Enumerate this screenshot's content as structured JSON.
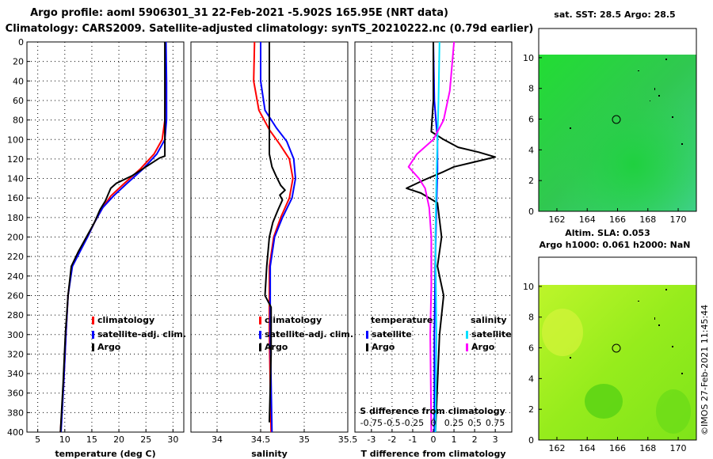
{
  "title_line1": "Argo profile: aoml 5906301_31 22-Feb-2021 -5.902S 165.95E (NRT data)",
  "title_line2": "Climatology: CARS2009. Satellite-adjusted climatology: synTS_20210222.nc (0.79d earlier)",
  "colors": {
    "climatology": "#ff0000",
    "satellite": "#0000ff",
    "argo": "#000000",
    "sat_salinity": "#00e0ff",
    "argo_salinity": "#ff00ff"
  },
  "chart_data": [
    {
      "type": "line",
      "name": "temperature",
      "xlabel": "temperature (deg C)",
      "xlim": [
        3,
        32
      ],
      "ylim": [
        0,
        400
      ],
      "xticks": [
        5,
        10,
        15,
        20,
        25,
        30
      ],
      "yticks": [
        0,
        20,
        40,
        60,
        80,
        100,
        120,
        140,
        160,
        180,
        200,
        220,
        240,
        260,
        280,
        300,
        320,
        340,
        360,
        380,
        400
      ],
      "legend": [
        "climatology",
        "satellite-adj. clim.",
        "Argo"
      ],
      "series": [
        {
          "name": "climatology",
          "color": "#ff0000",
          "points": [
            [
              28.6,
              0
            ],
            [
              28.6,
              40
            ],
            [
              28.5,
              80
            ],
            [
              28.0,
              100
            ],
            [
              26.5,
              115
            ],
            [
              24,
              130
            ],
            [
              21,
              145
            ],
            [
              18.5,
              158
            ],
            [
              17,
              170
            ],
            [
              15.5,
              185
            ],
            [
              14.2,
              200
            ],
            [
              12.5,
              215
            ],
            [
              11.3,
              230
            ],
            [
              10.6,
              260
            ],
            [
              10.2,
              300
            ],
            [
              9.8,
              350
            ],
            [
              9.2,
              400
            ]
          ]
        },
        {
          "name": "satellite-adj. clim.",
          "color": "#0000ff",
          "points": [
            [
              28.7,
              0
            ],
            [
              28.8,
              40
            ],
            [
              28.8,
              80
            ],
            [
              28.5,
              100
            ],
            [
              27,
              115
            ],
            [
              24.5,
              130
            ],
            [
              21.5,
              145
            ],
            [
              19,
              158
            ],
            [
              17,
              170
            ],
            [
              15.5,
              185
            ],
            [
              14.2,
              200
            ],
            [
              12.8,
              215
            ],
            [
              11.4,
              230
            ],
            [
              10.6,
              260
            ],
            [
              10.2,
              300
            ],
            [
              9.8,
              350
            ],
            [
              9.3,
              400
            ]
          ]
        },
        {
          "name": "Argo",
          "color": "#000000",
          "points": [
            [
              28.5,
              0
            ],
            [
              28.5,
              60
            ],
            [
              28.5,
              100
            ],
            [
              28.5,
              117
            ],
            [
              27.5,
              119
            ],
            [
              25,
              128
            ],
            [
              22.5,
              137
            ],
            [
              19.5,
              145
            ],
            [
              18.5,
              150
            ],
            [
              17.5,
              163
            ],
            [
              16.5,
              172
            ],
            [
              15.5,
              185
            ],
            [
              14.0,
              200
            ],
            [
              12.5,
              215
            ],
            [
              11.2,
              230
            ],
            [
              10.6,
              260
            ],
            [
              10.1,
              300
            ],
            [
              9.7,
              350
            ],
            [
              9.2,
              400
            ]
          ]
        }
      ]
    },
    {
      "type": "line",
      "name": "salinity",
      "xlabel": "salinity",
      "xlim": [
        33.7,
        35.5
      ],
      "ylim": [
        0,
        400
      ],
      "xticks": [
        34,
        34.5,
        35,
        35.5
      ],
      "legend": [
        "climatology",
        "satellite-adj. clim.",
        "Argo"
      ],
      "series": [
        {
          "name": "climatology",
          "color": "#ff0000",
          "points": [
            [
              34.43,
              0
            ],
            [
              34.42,
              40
            ],
            [
              34.48,
              70
            ],
            [
              34.6,
              90
            ],
            [
              34.72,
              105
            ],
            [
              34.83,
              120
            ],
            [
              34.87,
              140
            ],
            [
              34.83,
              160
            ],
            [
              34.73,
              180
            ],
            [
              34.65,
              200
            ],
            [
              34.6,
              230
            ],
            [
              34.6,
              300
            ],
            [
              34.62,
              400
            ]
          ]
        },
        {
          "name": "satellite-adj. clim.",
          "color": "#0000ff",
          "points": [
            [
              34.5,
              0
            ],
            [
              34.5,
              40
            ],
            [
              34.55,
              70
            ],
            [
              34.68,
              88
            ],
            [
              34.8,
              102
            ],
            [
              34.88,
              120
            ],
            [
              34.9,
              140
            ],
            [
              34.86,
              160
            ],
            [
              34.75,
              180
            ],
            [
              34.66,
              200
            ],
            [
              34.61,
              230
            ],
            [
              34.61,
              300
            ],
            [
              34.63,
              400
            ]
          ]
        },
        {
          "name": "Argo",
          "color": "#000000",
          "points": [
            [
              34.6,
              0
            ],
            [
              34.6,
              95
            ],
            [
              34.6,
              115
            ],
            [
              34.63,
              128
            ],
            [
              34.68,
              138
            ],
            [
              34.73,
              147
            ],
            [
              34.78,
              152
            ],
            [
              34.72,
              157
            ],
            [
              34.75,
              162
            ],
            [
              34.7,
              172
            ],
            [
              34.64,
              185
            ],
            [
              34.6,
              200
            ],
            [
              34.57,
              230
            ],
            [
              34.55,
              260
            ],
            [
              34.62,
              272
            ],
            [
              34.62,
              320
            ],
            [
              34.6,
              390
            ]
          ]
        }
      ]
    },
    {
      "type": "line",
      "name": "T difference from climatology",
      "xlabel": "T difference from climatology",
      "xlim": [
        -3.8,
        3.8
      ],
      "ylim": [
        0,
        400
      ],
      "xticks": [
        -3,
        -2,
        -1,
        0,
        1,
        2,
        3
      ],
      "top_xlabel": "S difference from climatology",
      "top_xtick_labels": [
        "-0.75",
        "-0.5",
        "-0.25",
        "0",
        "0.25",
        "0.5",
        "0.75"
      ],
      "legend_temperature": [
        "temperature",
        "satellite",
        "Argo"
      ],
      "legend_salinity": [
        "salinity",
        "satellite",
        "Argo"
      ],
      "series": [
        {
          "name": "temperature satellite",
          "color": "#0000ff",
          "points": [
            [
              0,
              0
            ],
            [
              0.05,
              60
            ],
            [
              0.2,
              100
            ],
            [
              0.2,
              130
            ],
            [
              0.15,
              170
            ],
            [
              0.1,
              220
            ],
            [
              0.05,
              300
            ],
            [
              0.05,
              400
            ]
          ]
        },
        {
          "name": "temperature Argo",
          "color": "#000000",
          "points": [
            [
              0,
              0
            ],
            [
              0,
              60
            ],
            [
              -0.1,
              92
            ],
            [
              0.5,
              100
            ],
            [
              1.2,
              108
            ],
            [
              2.2,
              113
            ],
            [
              3.0,
              118
            ],
            [
              2.0,
              123
            ],
            [
              1.0,
              128
            ],
            [
              0.5,
              133
            ],
            [
              -0.5,
              142
            ],
            [
              -1.3,
              150
            ],
            [
              -0.6,
              155
            ],
            [
              0.2,
              165
            ],
            [
              0.4,
              200
            ],
            [
              0.2,
              230
            ],
            [
              0.5,
              260
            ],
            [
              0.3,
              300
            ],
            [
              0.1,
              400
            ]
          ]
        },
        {
          "name": "salinity satellite",
          "color": "#00e0ff",
          "points": [
            [
              0.3,
              0
            ],
            [
              0.25,
              60
            ],
            [
              0.2,
              100
            ],
            [
              0.15,
              140
            ],
            [
              0.1,
              200
            ],
            [
              0.15,
              300
            ],
            [
              0.1,
              400
            ]
          ]
        },
        {
          "name": "salinity Argo",
          "color": "#ff00ff",
          "points": [
            [
              1.0,
              0
            ],
            [
              0.8,
              50
            ],
            [
              0.5,
              80
            ],
            [
              0,
              100
            ],
            [
              -0.8,
              115
            ],
            [
              -1.2,
              128
            ],
            [
              -0.7,
              140
            ],
            [
              -0.4,
              150
            ],
            [
              -0.2,
              170
            ],
            [
              -0.1,
              200
            ],
            [
              -0.1,
              250
            ],
            [
              -0.15,
              300
            ],
            [
              -0.1,
              400
            ]
          ]
        }
      ]
    }
  ],
  "maps": [
    {
      "title": "sat. SST: 28.5 Argo: 28.5",
      "xticks": [
        "162",
        "164",
        "166",
        "168",
        "170"
      ],
      "yticks": [
        "0",
        "2",
        "4",
        "6",
        "8",
        "10"
      ]
    },
    {
      "title1": "Altim. SLA: 0.053",
      "title2": "Argo h1000: 0.061 h2000: NaN",
      "xticks": [
        "162",
        "164",
        "166",
        "168",
        "170"
      ],
      "yticks": [
        "0",
        "2",
        "4",
        "6",
        "8",
        "10"
      ]
    }
  ],
  "stamp": "©IMOS 27-Feb-2021 11:45:44"
}
